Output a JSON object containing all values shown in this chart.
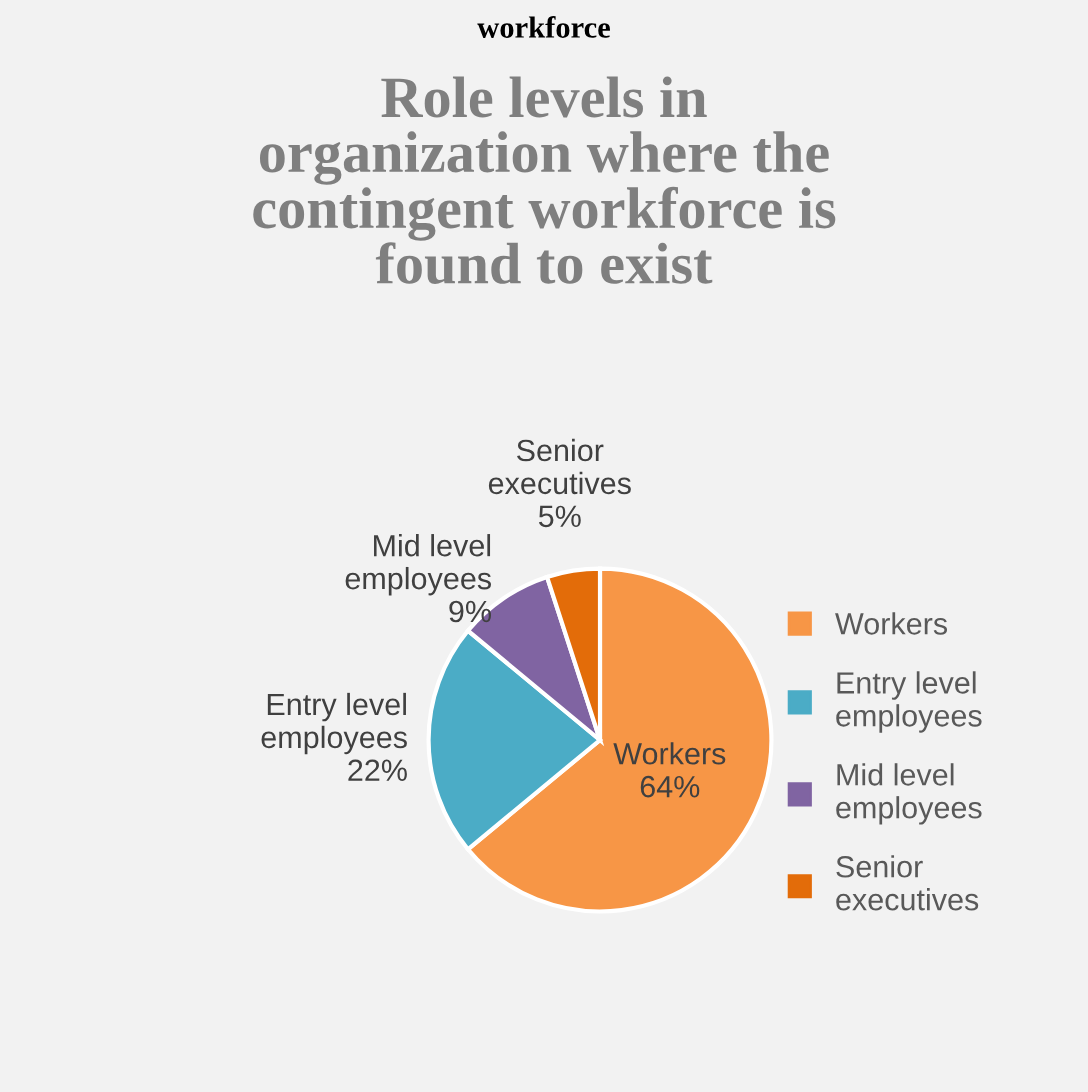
{
  "chart_data": {
    "type": "pie",
    "title": "Role levels in\norganization where the\ncontingent workforce is\nfound to exist",
    "annotations": [
      "workforce"
    ],
    "categories": [
      "Workers",
      "Entry level\nemployees",
      "Mid level\nemployees",
      "Senior\nexecutives"
    ],
    "values": [
      64,
      22,
      9,
      5
    ],
    "value_labels": [
      "64%",
      "22%",
      "9%",
      "5%"
    ],
    "colors": [
      "#f79646",
      "#4bacc6",
      "#8064a2",
      "#e36c09"
    ],
    "legend": "right"
  }
}
